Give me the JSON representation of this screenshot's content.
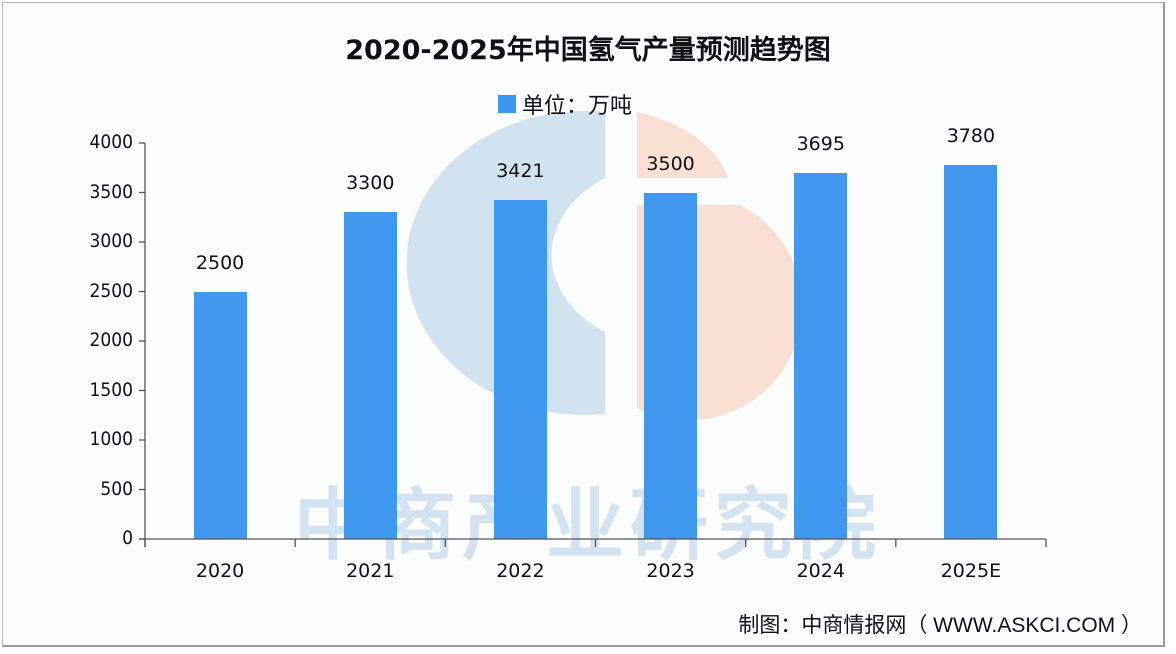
{
  "title": "2020-2025年中国氢气产量预测趋势图",
  "legend": {
    "label": "单位：万吨",
    "color": "#3a96ee"
  },
  "source": "制图：中商情报网（ WWW.ASKCI.COM ）",
  "watermark": {
    "text": "中商产业研究院",
    "logo_blue": "#cfe1f0",
    "logo_peach": "#f9e0d3"
  },
  "chart_data": {
    "type": "bar",
    "title": "2020-2025年中国氢气产量预测趋势图",
    "xlabel": "",
    "ylabel": "",
    "unit": "万吨",
    "categories": [
      "2020",
      "2021",
      "2022",
      "2023",
      "2024",
      "2025E"
    ],
    "series": [
      {
        "name": "单位：万吨",
        "values": [
          2500,
          3300,
          3421,
          3500,
          3695,
          3780
        ],
        "color": "#3a96ee"
      }
    ],
    "data_labels": [
      "2500",
      "3300",
      "3421",
      "3500",
      "3695",
      "3780"
    ],
    "ylim": [
      0,
      4000
    ],
    "yticks": [
      "0",
      "500",
      "1000",
      "1500",
      "2000",
      "2500",
      "3000",
      "3500",
      "4000"
    ],
    "grid": false,
    "legend_position": "top-center"
  }
}
